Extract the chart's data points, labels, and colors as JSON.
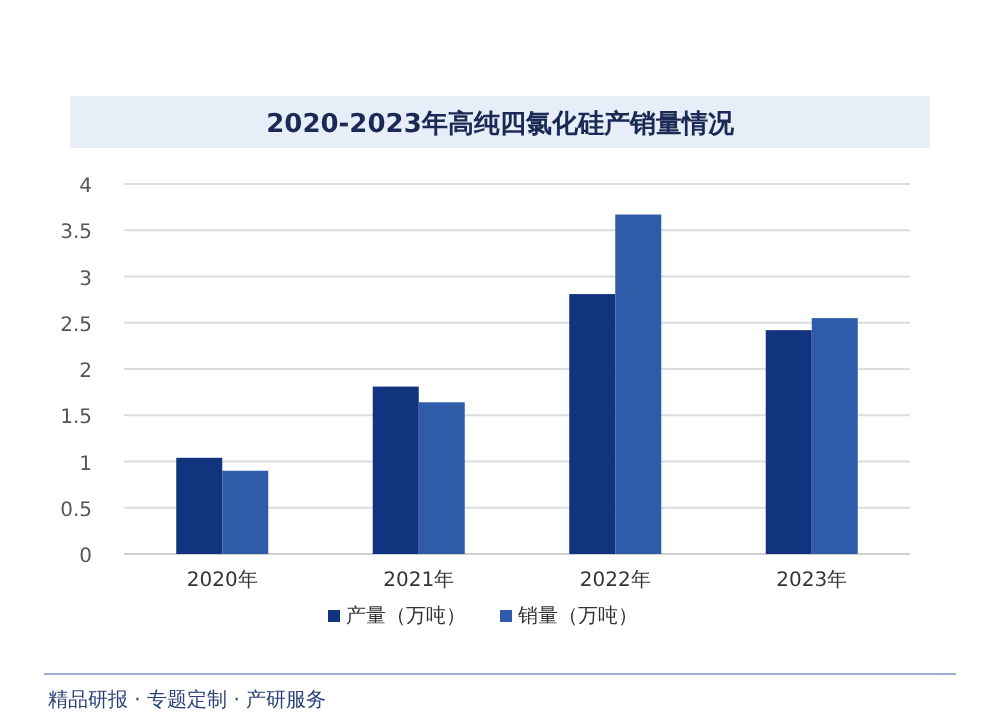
{
  "chart_data": {
    "type": "bar",
    "title": "2020-2023年高纯四氯化硅产销量情况",
    "categories": [
      "2020年",
      "2021年",
      "2022年",
      "2023年"
    ],
    "series": [
      {
        "name": "产量（万吨）",
        "color": "#12347f",
        "values": [
          1.04,
          1.81,
          2.81,
          2.42
        ]
      },
      {
        "name": "销量（万吨）",
        "color": "#2f5ba8",
        "values": [
          0.9,
          1.64,
          3.67,
          2.55
        ]
      }
    ],
    "ylim": [
      0,
      4
    ],
    "yticks": [
      0,
      0.5,
      1,
      1.5,
      2,
      2.5,
      3,
      3.5,
      4
    ],
    "grid": "y",
    "legend": "bottom",
    "annotations": [
      "精品研报 · 专题定制 · 产研服务"
    ]
  }
}
